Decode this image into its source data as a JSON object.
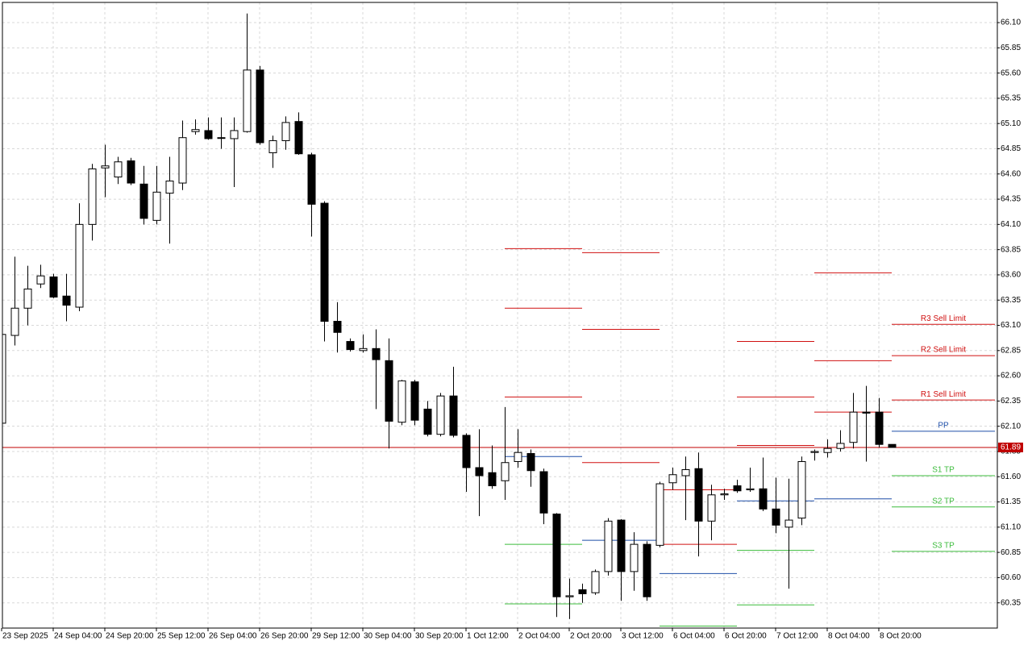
{
  "chart_data": {
    "type": "candlestick",
    "categories": [
      "23 Sep 2025",
      null,
      null,
      null,
      "24 Sep 04:00",
      null,
      null,
      null,
      "24 Sep 20:00",
      null,
      null,
      null,
      "25 Sep 12:00",
      null,
      null,
      null,
      "26 Sep 04:00",
      null,
      null,
      null,
      "26 Sep 20:00",
      null,
      null,
      null,
      "29 Sep 12:00",
      null,
      null,
      null,
      "30 Sep 04:00",
      null,
      null,
      null,
      "30 Sep 20:00",
      null,
      null,
      null,
      "1 Oct 12:00",
      null,
      null,
      null,
      "2 Oct 04:00",
      null,
      null,
      null,
      "2 Oct 20:00",
      null,
      null,
      null,
      "3 Oct 12:00",
      null,
      null,
      null,
      "6 Oct 04:00",
      null,
      null,
      null,
      "6 Oct 20:00",
      null,
      null,
      null,
      "7 Oct 12:00",
      null,
      null,
      null,
      "8 Oct 04:00",
      null,
      null,
      null,
      "8 Oct 20:00",
      null
    ],
    "open": [
      62.13,
      63.0,
      63.27,
      63.51,
      63.58,
      63.39,
      63.28,
      64.1,
      64.66,
      64.57,
      64.73,
      64.5,
      64.14,
      64.41,
      64.51,
      65.02,
      65.03,
      64.96,
      64.95,
      65.02,
      65.63,
      64.81,
      64.93,
      65.12,
      64.79,
      64.31,
      63.14,
      62.94,
      62.85,
      62.87,
      62.75,
      62.14,
      62.54,
      62.27,
      62.02,
      62.4,
      62.01,
      61.69,
      61.64,
      61.56,
      61.75,
      61.83,
      61.65,
      61.23,
      60.41,
      60.48,
      60.45,
      60.66,
      61.17,
      60.66,
      60.93,
      60.92,
      61.54,
      61.61,
      61.68,
      61.16,
      61.42,
      61.51,
      61.47,
      61.48,
      61.28,
      61.1,
      61.19,
      61.84,
      61.84,
      61.88,
      61.94,
      62.24,
      62.24,
      61.92
    ],
    "high": [
      63.1,
      63.78,
      63.69,
      63.7,
      63.61,
      63.61,
      64.31,
      64.7,
      64.89,
      64.77,
      64.76,
      64.68,
      64.68,
      64.77,
      65.13,
      65.14,
      65.16,
      65.16,
      65.16,
      66.19,
      65.67,
      64.98,
      65.17,
      65.21,
      64.81,
      64.33,
      63.33,
      62.97,
      63.01,
      63.06,
      62.97,
      62.56,
      62.56,
      62.35,
      62.43,
      62.69,
      62.03,
      62.07,
      61.91,
      62.29,
      62.07,
      61.87,
      61.68,
      61.24,
      60.59,
      60.54,
      60.68,
      61.19,
      61.18,
      61.05,
      60.96,
      61.55,
      61.69,
      61.8,
      61.84,
      61.52,
      61.48,
      61.57,
      61.69,
      61.79,
      61.59,
      61.58,
      61.8,
      61.87,
      61.97,
      62.06,
      62.43,
      62.5,
      62.38,
      61.92
    ],
    "low": [
      62.05,
      62.9,
      63.1,
      63.47,
      63.37,
      63.14,
      63.24,
      63.94,
      64.37,
      64.5,
      64.49,
      64.1,
      64.1,
      63.91,
      64.44,
      64.99,
      64.94,
      64.85,
      64.47,
      65.01,
      64.89,
      64.66,
      64.84,
      64.79,
      63.98,
      62.94,
      62.83,
      62.84,
      62.83,
      62.27,
      61.88,
      62.11,
      62.11,
      62.0,
      62.0,
      61.99,
      61.45,
      61.21,
      61.48,
      61.37,
      61.69,
      61.5,
      61.13,
      60.21,
      60.19,
      60.35,
      60.43,
      60.62,
      60.37,
      60.47,
      60.37,
      60.9,
      61.47,
      61.17,
      60.81,
      60.97,
      61.37,
      61.44,
      61.45,
      61.26,
      61.04,
      60.49,
      61.12,
      61.76,
      61.79,
      61.85,
      61.88,
      61.75,
      61.89,
      61.89
    ],
    "close": [
      63.01,
      63.27,
      63.46,
      63.59,
      63.38,
      63.3,
      64.1,
      64.65,
      64.68,
      64.72,
      64.51,
      64.16,
      64.42,
      64.53,
      64.96,
      65.04,
      64.95,
      64.96,
      65.03,
      65.63,
      64.91,
      64.93,
      65.11,
      64.8,
      64.3,
      63.14,
      63.03,
      62.86,
      62.87,
      62.76,
      62.15,
      62.55,
      62.16,
      62.02,
      62.4,
      62.01,
      61.69,
      61.61,
      61.51,
      61.74,
      61.84,
      61.66,
      61.24,
      60.41,
      60.42,
      60.44,
      60.66,
      61.16,
      60.66,
      60.93,
      60.41,
      61.53,
      61.62,
      61.67,
      61.16,
      61.42,
      61.43,
      61.46,
      61.48,
      61.28,
      61.12,
      61.17,
      61.75,
      61.85,
      61.88,
      61.93,
      62.24,
      62.23,
      61.92,
      61.89
    ],
    "ylim": [
      60.1,
      66.3
    ],
    "yticks": [
      60.35,
      {
        "value": 60.6,
        "label": "60.60"
      },
      60.85,
      {
        "value": 61.1,
        "label": "61.10"
      },
      61.35,
      {
        "value": 61.6,
        "label": "61.60"
      },
      61.85,
      {
        "value": 62.1,
        "label": "62.10"
      },
      62.35,
      {
        "value": 62.6,
        "label": "62.60"
      },
      62.85,
      {
        "value": 63.1,
        "label": "63.10"
      },
      63.35,
      {
        "value": 63.6,
        "label": "63.60"
      },
      63.85,
      {
        "value": 64.1,
        "label": "64.10"
      },
      64.35,
      {
        "value": 64.6,
        "label": "64.60"
      },
      64.85,
      {
        "value": 65.1,
        "label": "65.10"
      },
      65.35,
      {
        "value": 65.6,
        "label": "65.60"
      },
      65.85,
      {
        "value": 66.1,
        "label": "66.10"
      }
    ],
    "grid": true,
    "current_price": 61.89,
    "current_price_color": "#c00000",
    "level_x": [
      39,
      45,
      51,
      57,
      63,
      69,
      77
    ],
    "levels": [
      {
        "name": "R3 Sell Limit",
        "color": "#d01010",
        "values": [
          63.86,
          63.82,
          null,
          62.94,
          63.62,
          63.11
        ]
      },
      {
        "name": "R2 Sell Limit",
        "color": "#d01010",
        "values": [
          63.27,
          63.06,
          61.47,
          62.39,
          62.75,
          62.8
        ]
      },
      {
        "name": "R1 Sell Limit",
        "color": "#d01010",
        "values": [
          62.39,
          61.74,
          60.93,
          61.91,
          62.24,
          62.36
        ]
      },
      {
        "name": "PP",
        "color": "#1f4fa8",
        "values": [
          61.8,
          60.97,
          60.64,
          61.36,
          61.38,
          62.05
        ]
      },
      {
        "name": "S1 TP",
        "color": "#3cbc3c",
        "values": [
          60.93,
          null,
          60.12,
          60.87,
          null,
          61.61
        ]
      },
      {
        "name": "S2 TP",
        "color": "#3cbc3c",
        "values": [
          60.34,
          null,
          null,
          60.33,
          null,
          61.3
        ]
      },
      {
        "name": "S3 TP",
        "color": "#3cbc3c",
        "values": [
          null,
          null,
          null,
          null,
          null,
          60.86
        ]
      }
    ]
  }
}
